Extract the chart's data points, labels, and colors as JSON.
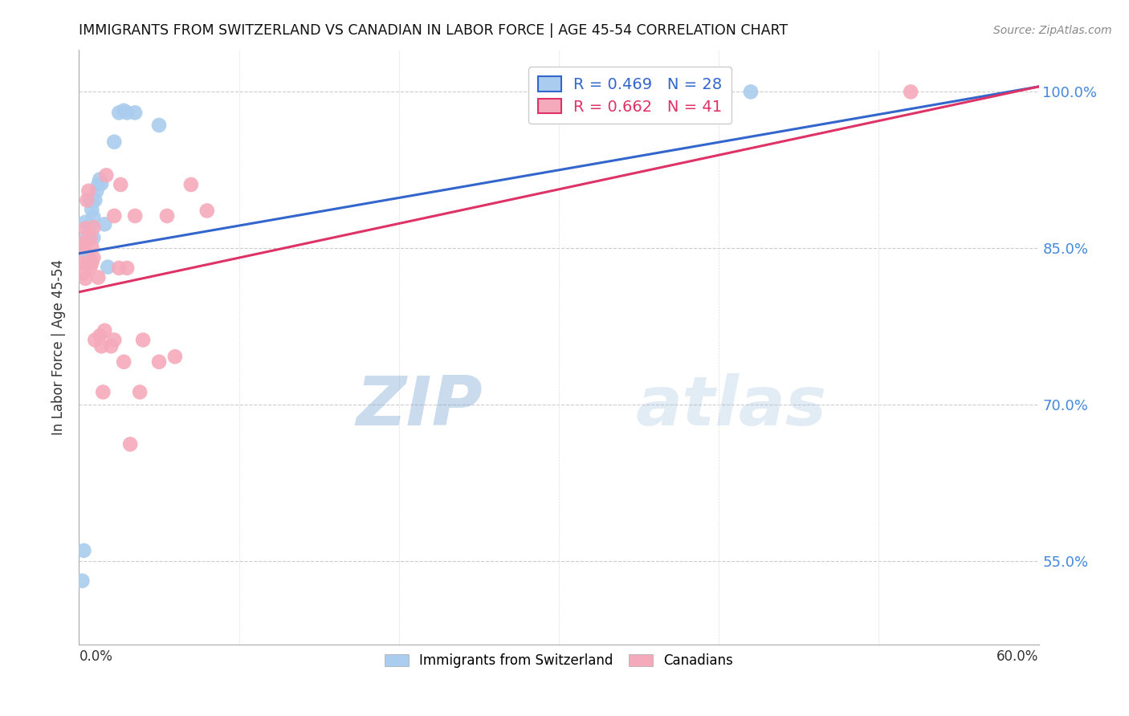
{
  "title": "IMMIGRANTS FROM SWITZERLAND VS CANADIAN IN LABOR FORCE | AGE 45-54 CORRELATION CHART",
  "source": "Source: ZipAtlas.com",
  "ylabel": "In Labor Force | Age 45-54",
  "xlim": [
    0.0,
    0.6
  ],
  "ylim": [
    0.47,
    1.04
  ],
  "ytick_positions": [
    0.55,
    0.7,
    0.85,
    1.0
  ],
  "ytick_labels": [
    "55.0%",
    "70.0%",
    "85.0%",
    "100.0%"
  ],
  "grid_yticks": [
    0.55,
    0.7,
    0.85,
    1.0
  ],
  "swiss_color": "#aaccee",
  "swiss_line_color": "#3366cc",
  "canadian_color": "#f5aabb",
  "canadian_line_color": "#dd3366",
  "swiss_R": 0.469,
  "swiss_N": 28,
  "canadian_R": 0.662,
  "canadian_N": 41,
  "swiss_line_x0": 0.0,
  "swiss_line_y0": 0.845,
  "swiss_line_x1": 0.6,
  "swiss_line_y1": 1.005,
  "canadian_line_x0": 0.0,
  "canadian_line_y0": 0.808,
  "canadian_line_x1": 0.6,
  "canadian_line_y1": 1.005,
  "swiss_x": [
    0.002,
    0.003,
    0.003,
    0.004,
    0.005,
    0.005,
    0.006,
    0.006,
    0.007,
    0.007,
    0.008,
    0.008,
    0.009,
    0.009,
    0.01,
    0.011,
    0.012,
    0.013,
    0.014,
    0.016,
    0.018,
    0.022,
    0.025,
    0.028,
    0.03,
    0.035,
    0.05,
    0.42
  ],
  "swiss_y": [
    0.531,
    0.56,
    0.855,
    0.875,
    0.845,
    0.862,
    0.837,
    0.843,
    0.872,
    0.896,
    0.887,
    0.895,
    0.86,
    0.88,
    0.896,
    0.905,
    0.911,
    0.916,
    0.912,
    0.873,
    0.832,
    0.952,
    0.98,
    0.982,
    0.98,
    0.98,
    0.968,
    1.0
  ],
  "canadian_x": [
    0.001,
    0.002,
    0.003,
    0.003,
    0.004,
    0.004,
    0.005,
    0.005,
    0.006,
    0.006,
    0.007,
    0.007,
    0.008,
    0.008,
    0.009,
    0.009,
    0.01,
    0.012,
    0.013,
    0.014,
    0.015,
    0.016,
    0.017,
    0.02,
    0.022,
    0.022,
    0.025,
    0.026,
    0.028,
    0.03,
    0.032,
    0.035,
    0.038,
    0.04,
    0.05,
    0.055,
    0.06,
    0.07,
    0.08,
    0.38,
    0.52
  ],
  "canadian_y": [
    0.836,
    0.855,
    0.826,
    0.851,
    0.821,
    0.869,
    0.835,
    0.896,
    0.836,
    0.905,
    0.832,
    0.86,
    0.836,
    0.851,
    0.841,
    0.87,
    0.762,
    0.822,
    0.766,
    0.756,
    0.712,
    0.771,
    0.92,
    0.756,
    0.762,
    0.881,
    0.831,
    0.911,
    0.741,
    0.831,
    0.662,
    0.881,
    0.712,
    0.762,
    0.741,
    0.881,
    0.746,
    0.911,
    0.886,
    1.0,
    1.0
  ],
  "watermark_zip": "ZIP",
  "watermark_atlas": "atlas",
  "background_color": "#ffffff",
  "legend_swiss_label": "Immigrants from Switzerland",
  "legend_canadian_label": "Canadians"
}
